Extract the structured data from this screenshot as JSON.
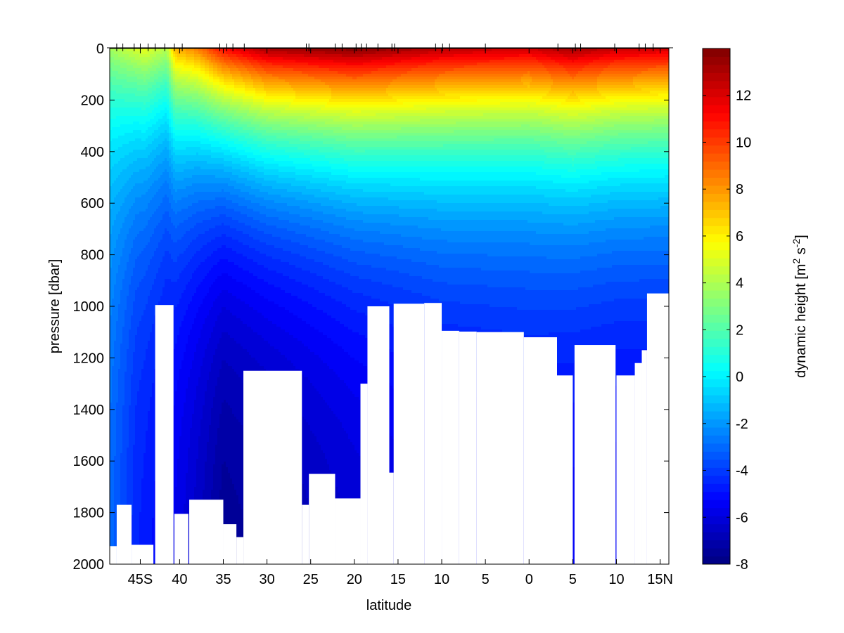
{
  "chart_data": {
    "type": "heatmap",
    "xlabel": "latitude",
    "ylabel": "pressure [dbar]",
    "colorbar_label": "dynamic height [m",
    "colorbar_sup1": "2",
    "colorbar_mid": " s",
    "colorbar_sup2": "-2",
    "colorbar_end": "]",
    "xlim": [
      -48,
      16
    ],
    "ylim": [
      2000,
      0
    ],
    "clim": [
      -8,
      14
    ],
    "x_ticks": [
      {
        "v": -44.5,
        "label": "45S"
      },
      {
        "v": -40,
        "label": "40"
      },
      {
        "v": -35,
        "label": "35"
      },
      {
        "v": -30,
        "label": "30"
      },
      {
        "v": -25,
        "label": "25"
      },
      {
        "v": -20,
        "label": "20"
      },
      {
        "v": -15,
        "label": "15"
      },
      {
        "v": -10,
        "label": "10"
      },
      {
        "v": -5,
        "label": "5"
      },
      {
        "v": 0,
        "label": "0"
      },
      {
        "v": 5,
        "label": "5"
      },
      {
        "v": 10,
        "label": "10"
      },
      {
        "v": 15,
        "label": "15N"
      }
    ],
    "y_ticks": [
      0,
      200,
      400,
      600,
      800,
      1000,
      1200,
      1400,
      1600,
      1800,
      2000
    ],
    "colorbar_ticks": [
      -8,
      -6,
      -4,
      -2,
      0,
      2,
      4,
      6,
      8,
      10,
      12
    ],
    "colormap": "jet",
    "station_latitudes": [
      -47.2,
      -46.5,
      -45.2,
      -44.5,
      -43.6,
      -42.8,
      -41.7,
      -40.6,
      -39.7,
      -35.4,
      -34.6,
      -33.9,
      -32.6,
      -25.5,
      -25.2,
      -22.2,
      -21.4,
      -19.8,
      -19.2,
      -18.6,
      -17.3,
      -15.7,
      -15.4,
      -10.7,
      -9.9,
      -9.1,
      -5.0,
      3.3,
      5.3,
      5.9,
      9.8,
      12.6,
      13.3,
      14.2
    ],
    "surface_profile": [
      {
        "lat": -48,
        "p0": 3.8
      },
      {
        "lat": -44,
        "p0": 5.2
      },
      {
        "lat": -41.5,
        "p0": 4.2
      },
      {
        "lat": -40.5,
        "p0": 7.5
      },
      {
        "lat": -38,
        "p0": 8.5
      },
      {
        "lat": -35,
        "p0": 11.2
      },
      {
        "lat": -30,
        "p0": 13.2
      },
      {
        "lat": -20,
        "p0": 14.0
      },
      {
        "lat": -10,
        "p0": 12.8
      },
      {
        "lat": 0,
        "p0": 12.3
      },
      {
        "lat": 5,
        "p0": 13.3
      },
      {
        "lat": 10,
        "p0": 12.5
      },
      {
        "lat": 16,
        "p0": 12.2
      }
    ],
    "depth_profile": [
      {
        "lat": -48,
        "p2000": -3.0
      },
      {
        "lat": -45,
        "p2000": -4.5
      },
      {
        "lat": -42,
        "p2000": -5.2
      },
      {
        "lat": -38,
        "p2000": -6.5
      },
      {
        "lat": -35,
        "p2000": -7.6
      },
      {
        "lat": -30,
        "p2000": -7.2
      },
      {
        "lat": -20,
        "p2000": -6.3
      },
      {
        "lat": -10,
        "p2000": -5.6
      },
      {
        "lat": 0,
        "p2000": -5.4
      },
      {
        "lat": 10,
        "p2000": -5.6
      },
      {
        "lat": 16,
        "p2000": -5.6
      }
    ],
    "bottom_depth": [
      {
        "lat_from": -48,
        "lat_to": -47.2,
        "depth": 1930
      },
      {
        "lat_from": -47.2,
        "lat_to": -45.5,
        "depth": 1770
      },
      {
        "lat_from": -45.5,
        "lat_to": -43.0,
        "depth": 1925
      },
      {
        "lat_from": -43.0,
        "lat_to": -42.8,
        "depth": 2000
      },
      {
        "lat_from": -42.8,
        "lat_to": -40.7,
        "depth": 995
      },
      {
        "lat_from": -40.7,
        "lat_to": -40.6,
        "depth": 2000
      },
      {
        "lat_from": -40.6,
        "lat_to": -39.0,
        "depth": 1805
      },
      {
        "lat_from": -39.0,
        "lat_to": -38.9,
        "depth": 2000
      },
      {
        "lat_from": -38.9,
        "lat_to": -35.0,
        "depth": 1750
      },
      {
        "lat_from": -35.0,
        "lat_to": -33.5,
        "depth": 1845
      },
      {
        "lat_from": -33.5,
        "lat_to": -32.7,
        "depth": 1895
      },
      {
        "lat_from": -32.7,
        "lat_to": -26.0,
        "depth": 1250
      },
      {
        "lat_from": -26.0,
        "lat_to": -25.2,
        "depth": 1770
      },
      {
        "lat_from": -25.2,
        "lat_to": -22.2,
        "depth": 1650
      },
      {
        "lat_from": -22.2,
        "lat_to": -19.3,
        "depth": 1745
      },
      {
        "lat_from": -19.3,
        "lat_to": -18.5,
        "depth": 1300
      },
      {
        "lat_from": -18.5,
        "lat_to": -16.0,
        "depth": 1000
      },
      {
        "lat_from": -16.0,
        "lat_to": -15.5,
        "depth": 1645
      },
      {
        "lat_from": -15.5,
        "lat_to": -12.0,
        "depth": 990
      },
      {
        "lat_from": -12.0,
        "lat_to": -10.0,
        "depth": 987
      },
      {
        "lat_from": -10.0,
        "lat_to": -8.0,
        "depth": 1095
      },
      {
        "lat_from": -8.0,
        "lat_to": -6.0,
        "depth": 1098
      },
      {
        "lat_from": -6.0,
        "lat_to": -0.6,
        "depth": 1100
      },
      {
        "lat_from": -0.6,
        "lat_to": 3.2,
        "depth": 1120
      },
      {
        "lat_from": 3.2,
        "lat_to": 5.0,
        "depth": 1268
      },
      {
        "lat_from": 5.0,
        "lat_to": 5.2,
        "depth": 2000
      },
      {
        "lat_from": 5.2,
        "lat_to": 9.9,
        "depth": 1150
      },
      {
        "lat_from": 9.9,
        "lat_to": 10.0,
        "depth": 2000
      },
      {
        "lat_from": 10.0,
        "lat_to": 12.1,
        "depth": 1268
      },
      {
        "lat_from": 12.1,
        "lat_to": 12.9,
        "depth": 1220
      },
      {
        "lat_from": 12.9,
        "lat_to": 13.5,
        "depth": 1170
      },
      {
        "lat_from": 13.5,
        "lat_to": 16.0,
        "depth": 950
      }
    ]
  }
}
